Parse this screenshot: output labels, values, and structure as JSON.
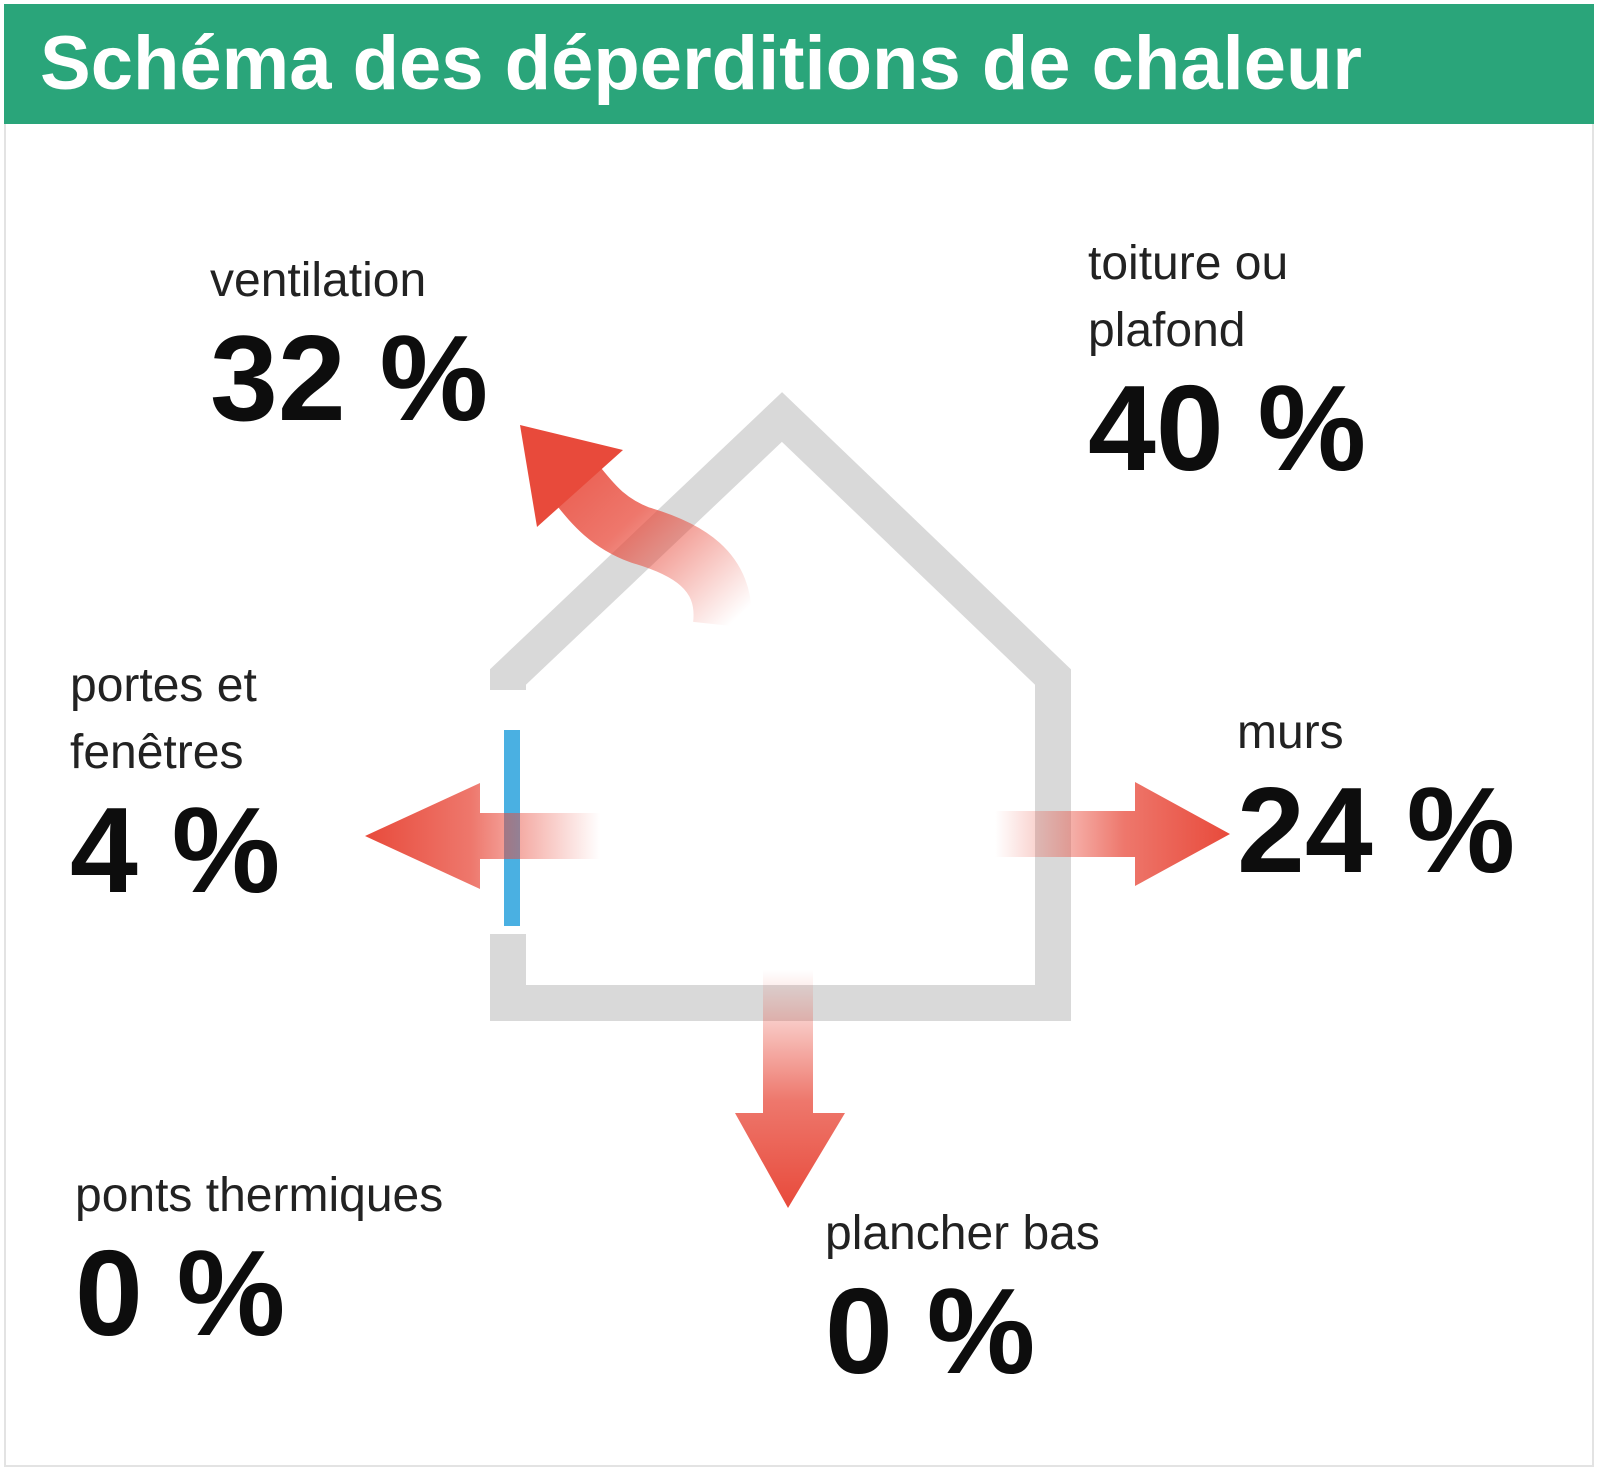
{
  "header": {
    "title": "Schéma des déperditions de chaleur",
    "background_color": "#2aa57a"
  },
  "colors": {
    "house_outline": "#d9d9d9",
    "arrow": "#e84a3b",
    "window": "#4ab0e2"
  },
  "icons": {
    "house": "house-outline-icon",
    "window": "window-icon",
    "arrow": "arrow-icon"
  },
  "losses": {
    "ventilation": {
      "label": "ventilation",
      "value": "32 %"
    },
    "toiture": {
      "label": "toiture ou\nplafond",
      "value": "40 %"
    },
    "portes": {
      "label": "portes et\nfenêtres",
      "value": "4 %"
    },
    "murs": {
      "label": "murs",
      "value": "24 %"
    },
    "ponts": {
      "label": "ponts thermiques",
      "value": "0 %"
    },
    "plancher": {
      "label": "plancher bas",
      "value": "0 %"
    }
  }
}
